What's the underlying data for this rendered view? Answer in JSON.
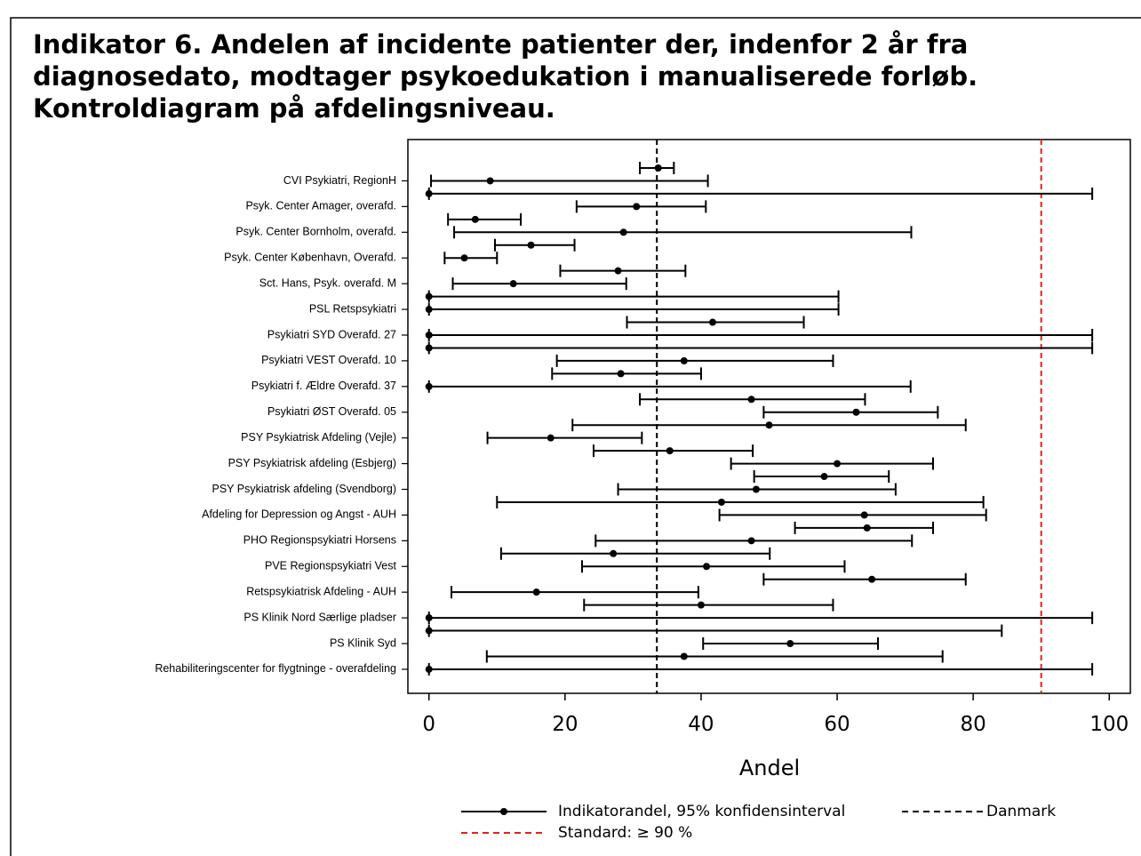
{
  "chart_data": {
    "type": "errorbar",
    "title": [
      "Indikator 6. Andelen af incidente patienter der, indenfor 2 år fra",
      "diagnosedato, modtager psykoedukation i manualiserede forløb.",
      "Kontroldiagram på afdelingsniveau."
    ],
    "xlabel": "Andel",
    "categories": [
      null,
      "CVI Psykiatri, RegionH",
      null,
      "Psyk. Center Amager, overafd.",
      null,
      "Psyk. Center Bornholm, overafd.",
      null,
      "Psyk. Center København, Overafd.",
      null,
      "Sct. Hans, Psyk. overafd. M",
      null,
      "PSL Retspsykiatri",
      null,
      "Psykiatri SYD Overafd. 27",
      null,
      "Psykiatri VEST Overafd. 10",
      null,
      "Psykiatri f. Ældre Overafd. 37",
      null,
      "Psykiatri ØST Overafd. 05",
      null,
      "PSY Psykiatrisk Afdeling (Vejle)",
      null,
      "PSY Psykiatrisk afdeling (Esbjerg)",
      null,
      "PSY Psykiatrisk afdeling (Svendborg)",
      null,
      "Afdeling for Depression og Angst - AUH",
      null,
      "PHO Regionspsykiatri Horsens",
      null,
      "PVE Regionspsykiatri Vest",
      null,
      "Retspsykiatrisk Afdeling - AUH",
      null,
      "PS Klinik Nord Særlige pladser",
      null,
      "PS Klinik Syd",
      null,
      "Rehabiliteringscenter for flygtninge - overafdeling"
    ],
    "series": [
      {
        "name": "Indikatorandel, 95% konfidensinterval",
        "color": "#000000",
        "values": [
          33.7,
          9,
          0,
          30.5,
          6.8,
          28.6,
          15,
          5.2,
          27.8,
          12.4,
          0,
          0,
          41.7,
          0,
          0,
          37.5,
          28.2,
          0,
          47.4,
          62.8,
          50,
          17.9,
          35.4,
          60,
          58.1,
          48.1,
          43,
          64,
          64.4,
          47.4,
          27.1,
          40.8,
          65.1,
          15.8,
          40,
          0,
          0,
          53.1,
          37.5,
          0
        ],
        "lower": [
          31,
          0.3,
          0,
          21.7,
          2.8,
          3.7,
          9.7,
          2.3,
          19.3,
          3.5,
          0,
          0,
          29.1,
          0,
          0,
          18.8,
          18.1,
          0,
          31,
          49.2,
          21.1,
          8.6,
          24.2,
          44.4,
          47.8,
          27.8,
          10,
          42.7,
          53.8,
          24.5,
          10.6,
          22.5,
          49.2,
          3.3,
          22.8,
          0,
          0,
          40.3,
          8.5,
          0
        ],
        "upper": [
          36,
          41,
          97.5,
          40.7,
          13.5,
          70.9,
          21.4,
          10,
          37.7,
          29,
          60.2,
          60.2,
          55.1,
          97.5,
          97.5,
          59.4,
          40,
          70.8,
          64.1,
          74.8,
          78.9,
          31.3,
          47.6,
          74.1,
          67.6,
          68.6,
          81.5,
          81.9,
          74.1,
          71,
          50.1,
          61.1,
          78.9,
          39.6,
          59.4,
          97.5,
          84.2,
          66,
          75.5,
          97.5
        ]
      }
    ],
    "reference_lines": [
      {
        "name": "Danmark",
        "value": 33.5,
        "color": "#000000"
      },
      {
        "name": "Standard: ≥ 90 %",
        "value": 90,
        "color": "#e0221f"
      }
    ],
    "xlim": [
      -3.1,
      103.1
    ],
    "xticks": [
      0,
      20,
      40,
      60,
      80,
      100
    ]
  }
}
